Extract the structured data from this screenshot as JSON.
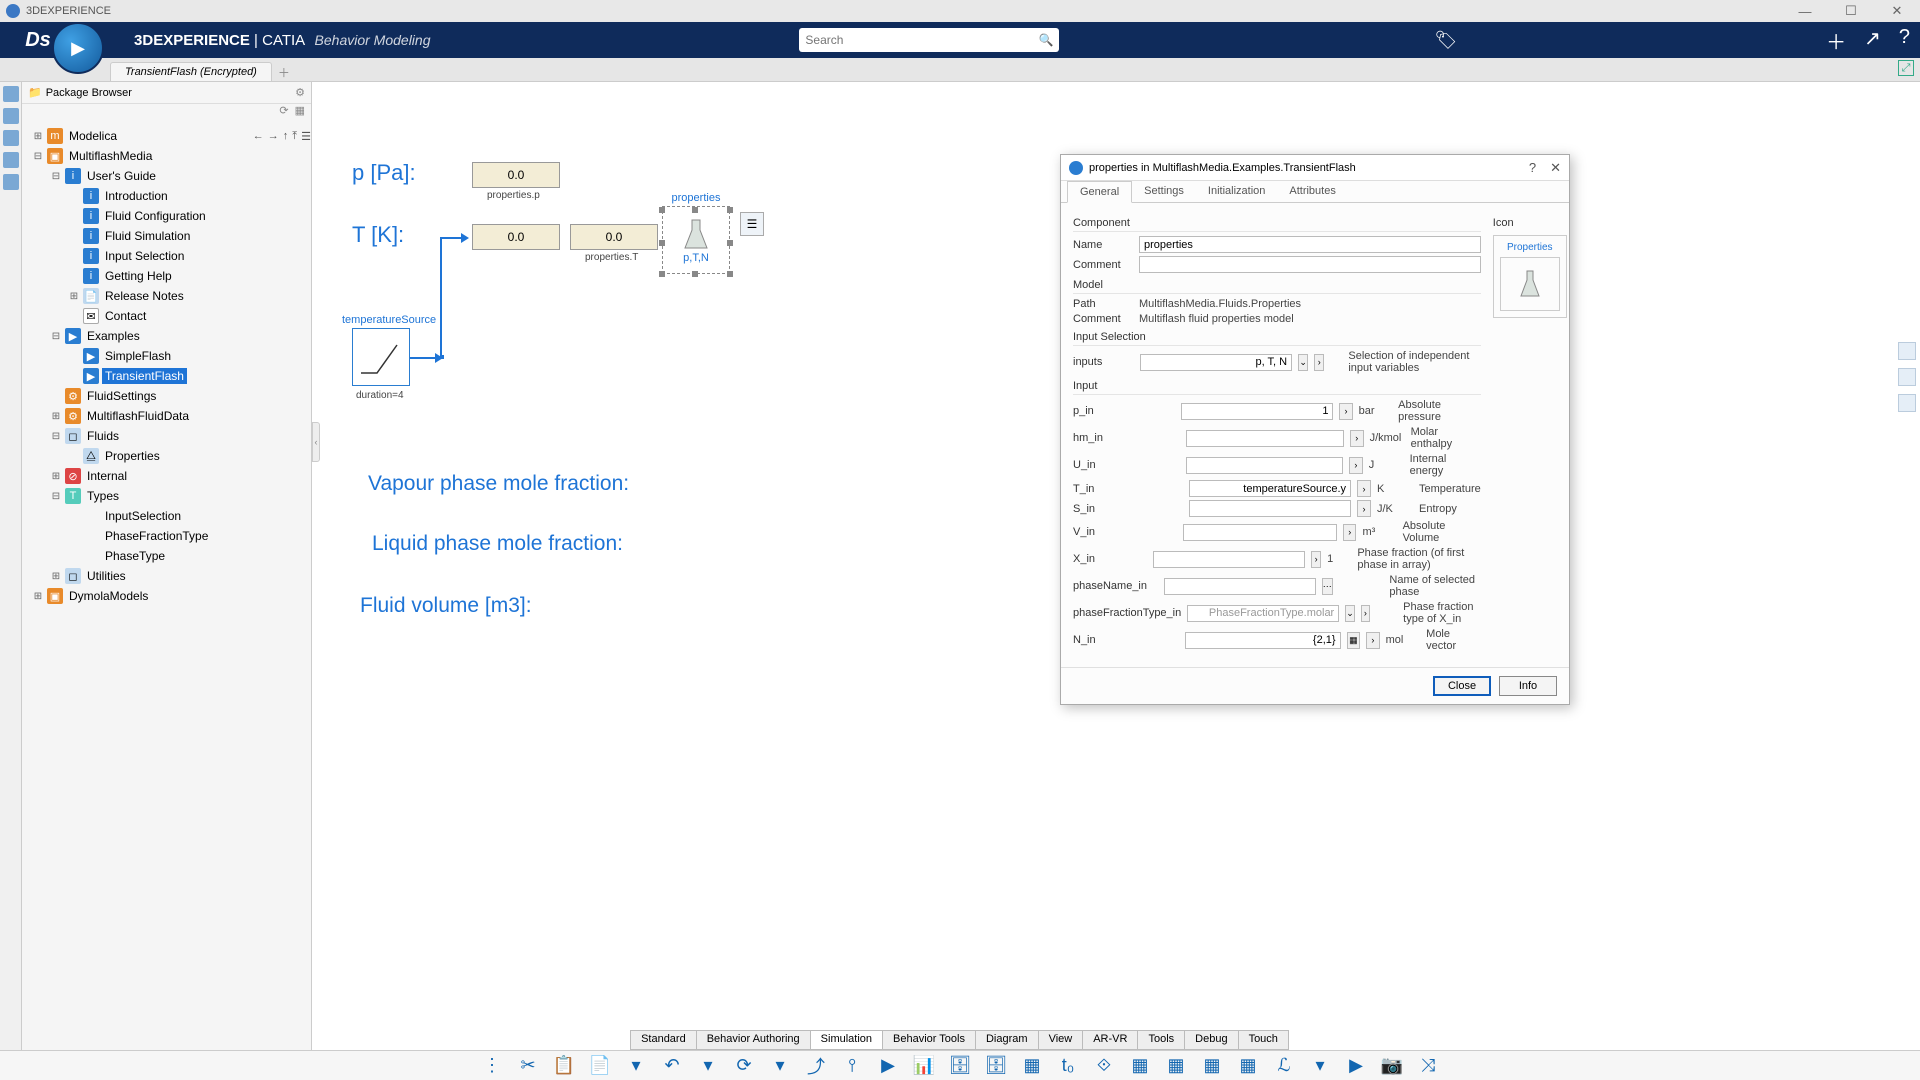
{
  "titlebar": {
    "appname": "3DEXPERIENCE"
  },
  "topbar": {
    "brand_prefix": "3D",
    "brand_bold": "EXPERIENCE",
    "brand_sep": " | CATIA ",
    "subtitle": "Behavior Modeling",
    "search_placeholder": "Search"
  },
  "tabstrip": {
    "tab1": "TransientFlash (Encrypted)"
  },
  "pkg": {
    "title": "Package Browser",
    "rows": [
      {
        "ind": 0,
        "tw": "+",
        "ic": "ic-pkg",
        "glyph": "m",
        "txt": "Modelica",
        "nav": true
      },
      {
        "ind": 0,
        "tw": "−",
        "ic": "ic-pkg",
        "glyph": "▣",
        "txt": "MultiflashMedia"
      },
      {
        "ind": 1,
        "tw": "−",
        "ic": "ic-info",
        "glyph": "i",
        "txt": "User's Guide"
      },
      {
        "ind": 2,
        "tw": "",
        "ic": "ic-info",
        "glyph": "i",
        "txt": "Introduction"
      },
      {
        "ind": 2,
        "tw": "",
        "ic": "ic-info",
        "glyph": "i",
        "txt": "Fluid Configuration"
      },
      {
        "ind": 2,
        "tw": "",
        "ic": "ic-info",
        "glyph": "i",
        "txt": "Fluid Simulation"
      },
      {
        "ind": 2,
        "tw": "",
        "ic": "ic-info",
        "glyph": "i",
        "txt": "Input Selection"
      },
      {
        "ind": 2,
        "tw": "",
        "ic": "ic-info",
        "glyph": "i",
        "txt": "Getting Help"
      },
      {
        "ind": 2,
        "tw": "+",
        "ic": "ic-cls",
        "glyph": "📄",
        "txt": "Release Notes"
      },
      {
        "ind": 2,
        "tw": "",
        "ic": "ic-mail",
        "glyph": "✉",
        "txt": "Contact"
      },
      {
        "ind": 1,
        "tw": "−",
        "ic": "ic-ex",
        "glyph": "▶",
        "txt": "Examples"
      },
      {
        "ind": 2,
        "tw": "",
        "ic": "ic-ex",
        "glyph": "▶",
        "txt": "SimpleFlash"
      },
      {
        "ind": 2,
        "tw": "",
        "ic": "ic-ex",
        "glyph": "▶",
        "txt": "TransientFlash",
        "sel": true
      },
      {
        "ind": 1,
        "tw": "",
        "ic": "ic-pkg",
        "glyph": "⚙",
        "txt": "FluidSettings"
      },
      {
        "ind": 1,
        "tw": "+",
        "ic": "ic-pkg",
        "glyph": "⚙",
        "txt": "MultiflashFluidData"
      },
      {
        "ind": 1,
        "tw": "−",
        "ic": "ic-cls",
        "glyph": "◻",
        "txt": "Fluids"
      },
      {
        "ind": 2,
        "tw": "",
        "ic": "ic-cls",
        "glyph": "⧋",
        "txt": "Properties"
      },
      {
        "ind": 1,
        "tw": "+",
        "ic": "ic-fn",
        "glyph": "⊘",
        "txt": "Internal"
      },
      {
        "ind": 1,
        "tw": "−",
        "ic": "ic-type",
        "glyph": "T",
        "txt": "Types"
      },
      {
        "ind": 2,
        "tw": "",
        "ic": "",
        "glyph": "",
        "txt": "InputSelection"
      },
      {
        "ind": 2,
        "tw": "",
        "ic": "",
        "glyph": "",
        "txt": "PhaseFractionType"
      },
      {
        "ind": 2,
        "tw": "",
        "ic": "",
        "glyph": "",
        "txt": "PhaseType"
      },
      {
        "ind": 1,
        "tw": "+",
        "ic": "ic-cls",
        "glyph": "◻",
        "txt": "Utilities"
      },
      {
        "ind": 0,
        "tw": "+",
        "ic": "ic-pkg",
        "glyph": "▣",
        "txt": "DymolaModels"
      }
    ]
  },
  "diagram": {
    "p_label": "p [Pa]:",
    "t_label": "T [K]:",
    "val1": "0.0",
    "cap1": "properties.p",
    "val2": "0.0",
    "val3": "0.0",
    "cap3": "properties.T",
    "src_label": "temperatureSource",
    "src_caption": "duration=4",
    "flask_label": "properties",
    "flask_sub": "p,T,N",
    "vapour": "Vapour phase mole fraction:",
    "liquid": "Liquid phase mole fraction:",
    "volume": "Fluid volume [m3]:"
  },
  "dialog": {
    "title": "properties in MultiflashMedia.Examples.TransientFlash",
    "tabs": {
      "t1": "General",
      "t2": "Settings",
      "t3": "Initialization",
      "t4": "Attributes"
    },
    "sec_component": "Component",
    "sec_icon": "Icon",
    "name_lbl": "Name",
    "name_val": "properties",
    "comment_lbl": "Comment",
    "comment_val": "",
    "icon_caption": "Properties",
    "sec_model": "Model",
    "path_lbl": "Path",
    "path_val": "MultiflashMedia.Fluids.Properties",
    "mcomment_lbl": "Comment",
    "mcomment_val": "Multiflash fluid properties model",
    "sec_inputsel": "Input Selection",
    "inputs_lbl": "inputs",
    "inputs_val": "p, T, N",
    "inputs_desc": "Selection of independent input variables",
    "sec_input": "Input",
    "rows": [
      {
        "name": "p_in",
        "val": "1",
        "unit": "bar",
        "desc": "Absolute pressure",
        "chev": true
      },
      {
        "name": "hm_in",
        "val": "",
        "unit": "J/kmol",
        "desc": "Molar enthalpy",
        "chev": true
      },
      {
        "name": "U_in",
        "val": "",
        "unit": "J",
        "desc": "Internal energy",
        "chev": true
      },
      {
        "name": "T_in",
        "val": "temperatureSource.y",
        "unit": "K",
        "desc": "Temperature",
        "chev": true
      },
      {
        "name": "S_in",
        "val": "",
        "unit": "J/K",
        "desc": "Entropy",
        "chev": true
      },
      {
        "name": "V_in",
        "val": "",
        "unit": "m³",
        "desc": "Absolute Volume",
        "chev": true
      },
      {
        "name": "X_in",
        "val": "",
        "unit": "1",
        "desc": "Phase fraction (of first phase in array)",
        "chev": true
      },
      {
        "name": "phaseName_in",
        "val": "",
        "unit": "",
        "desc": "Name of selected phase",
        "ell": true
      },
      {
        "name": "phaseFractionType_in",
        "val": "PhaseFractionType.molar",
        "unit": "",
        "desc": "Phase fraction type of X_in",
        "dd": true,
        "grey": true
      },
      {
        "name": "N_in",
        "val": "{2,1}",
        "unit": "mol",
        "desc": "Mole vector",
        "matrix": true
      }
    ],
    "btn_close": "Close",
    "btn_info": "Info"
  },
  "bottom_tabs": [
    "Standard",
    "Behavior Authoring",
    "Simulation",
    "Behavior Tools",
    "Diagram",
    "View",
    "AR-VR",
    "Tools",
    "Debug",
    "Touch"
  ],
  "bottom_active": 2,
  "toolbar_icons": [
    "⋮",
    "✂",
    "📋",
    "📄",
    "▾",
    "↶",
    "▾",
    "⟳",
    "▾",
    "⤴",
    "⫯",
    "▶",
    "📊",
    "🗄",
    "🗄",
    "▦",
    "t₀",
    "⟐",
    "▦",
    "▦",
    "▦",
    "▦",
    "ℒ",
    "▾",
    "▶",
    "📷",
    "⤨"
  ]
}
